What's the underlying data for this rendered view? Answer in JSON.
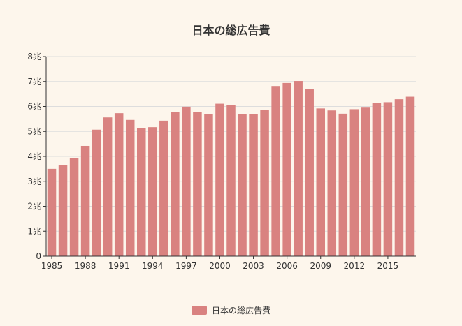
{
  "colors": {
    "bar": "#d98280",
    "grid": "#dddddd",
    "axis": "#333333",
    "background": "#fdf6ec"
  },
  "chart_data": {
    "type": "bar",
    "title": "日本の総広告費",
    "x": [
      1985,
      1986,
      1987,
      1988,
      1989,
      1990,
      1991,
      1992,
      1993,
      1994,
      1995,
      1996,
      1997,
      1998,
      1999,
      2000,
      2001,
      2002,
      2003,
      2004,
      2005,
      2006,
      2007,
      2008,
      2009,
      2010,
      2011,
      2012,
      2013,
      2014,
      2015,
      2016,
      2017
    ],
    "x_tick_labels": [
      "1985",
      "1988",
      "1991",
      "1994",
      "1997",
      "2000",
      "2003",
      "2006",
      "2009",
      "2012",
      "2015"
    ],
    "series": [
      {
        "name": "日本の総広告費",
        "values": [
          3.5,
          3.64,
          3.94,
          4.42,
          5.07,
          5.56,
          5.73,
          5.46,
          5.13,
          5.17,
          5.43,
          5.77,
          5.99,
          5.77,
          5.7,
          6.11,
          6.06,
          5.7,
          5.68,
          5.86,
          6.82,
          6.94,
          7.02,
          6.69,
          5.92,
          5.84,
          5.71,
          5.89,
          5.98,
          6.15,
          6.17,
          6.29,
          6.39
        ]
      }
    ],
    "y_tick_labels": [
      "0",
      "1兆",
      "2兆",
      "3兆",
      "4兆",
      "5兆",
      "6兆",
      "7兆",
      "8兆"
    ],
    "ylim": [
      0,
      8
    ],
    "xlabel": "",
    "ylabel": "",
    "grid": true,
    "legend_position": "bottom"
  }
}
